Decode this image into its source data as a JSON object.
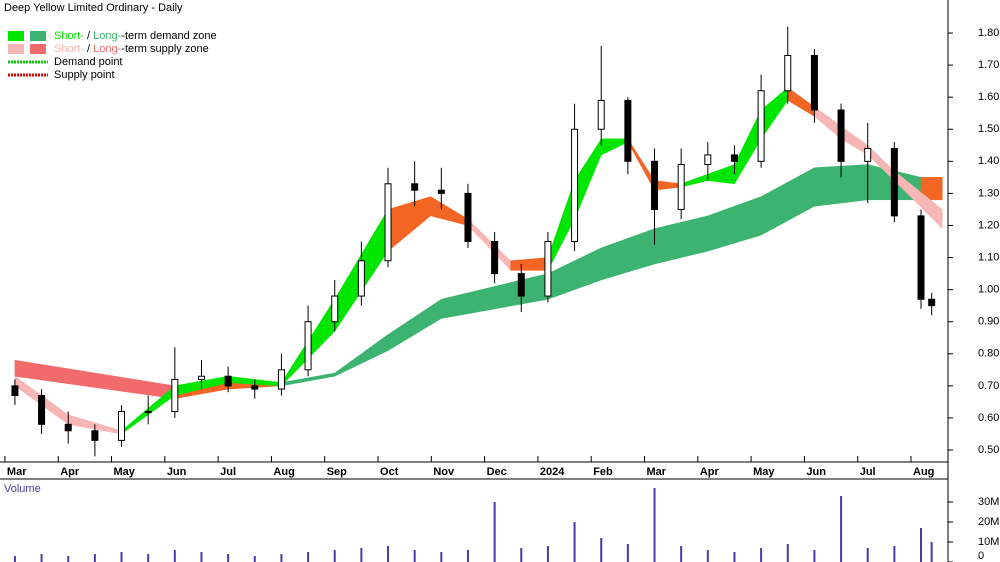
{
  "chart_data": [
    {
      "type": "candlestick",
      "title": "Deep Yellow Limited Ordinary - Daily",
      "legend": [
        {
          "parts": [
            "Short-",
            " / ",
            "Long-",
            "-term demand zone"
          ],
          "colors": [
            "#00e600",
            "#3cb371"
          ]
        },
        {
          "parts": [
            "Short-",
            " / ",
            "Long-",
            "-term supply zone"
          ],
          "colors": [
            "#f7b6b6",
            "#f26b6b"
          ]
        },
        {
          "parts": [
            "Demand point"
          ],
          "colors": [
            "#00cc00"
          ]
        },
        {
          "parts": [
            "Supply point"
          ],
          "colors": [
            "#e00000"
          ]
        }
      ],
      "x": [
        0,
        0.5,
        1,
        1.5,
        2,
        2.5,
        3,
        3.5,
        4,
        4.5,
        5,
        5.5,
        6,
        6.5,
        7,
        7.5,
        8,
        8.5,
        9,
        9.5,
        10,
        10.5,
        11,
        11.5,
        12,
        12.5,
        13,
        13.5,
        14,
        14.5,
        15,
        15.5,
        16,
        16.5,
        17,
        17.2
      ],
      "open": [
        0.7,
        0.67,
        0.58,
        0.56,
        0.53,
        0.62,
        0.62,
        0.72,
        0.73,
        0.7,
        0.69,
        0.75,
        0.9,
        0.98,
        1.09,
        1.33,
        1.31,
        1.3,
        1.15,
        1.05,
        0.98,
        1.15,
        1.5,
        1.59,
        1.4,
        1.25,
        1.39,
        1.42,
        1.4,
        1.62,
        1.73,
        1.56,
        1.4,
        1.44,
        1.23,
        0.97
      ],
      "high": [
        0.72,
        0.69,
        0.62,
        0.58,
        0.64,
        0.67,
        0.82,
        0.78,
        0.76,
        0.72,
        0.8,
        0.95,
        1.03,
        1.15,
        1.38,
        1.4,
        1.38,
        1.33,
        1.18,
        1.08,
        1.18,
        1.58,
        1.76,
        1.6,
        1.44,
        1.44,
        1.46,
        1.45,
        1.67,
        1.82,
        1.75,
        1.58,
        1.52,
        1.46,
        1.25,
        0.99
      ],
      "low": [
        0.64,
        0.55,
        0.52,
        0.48,
        0.51,
        0.58,
        0.6,
        0.69,
        0.68,
        0.66,
        0.67,
        0.73,
        0.87,
        0.95,
        1.07,
        1.26,
        1.25,
        1.13,
        1.02,
        0.93,
        0.96,
        1.12,
        1.45,
        1.36,
        1.14,
        1.22,
        1.34,
        1.36,
        1.38,
        1.58,
        1.52,
        1.35,
        1.27,
        1.21,
        0.94,
        0.92
      ],
      "close": [
        0.67,
        0.58,
        0.56,
        0.53,
        0.62,
        0.62,
        0.72,
        0.73,
        0.7,
        0.69,
        0.75,
        0.9,
        0.98,
        1.09,
        1.33,
        1.31,
        1.3,
        1.15,
        1.05,
        0.98,
        1.15,
        1.5,
        1.59,
        1.4,
        1.25,
        1.39,
        1.42,
        1.4,
        1.62,
        1.73,
        1.56,
        1.4,
        1.44,
        1.23,
        0.97,
        0.95
      ],
      "bands": [
        {
          "x": [
            0,
            3,
            4,
            5,
            6,
            7,
            8,
            9,
            10,
            11,
            12,
            13,
            14,
            15,
            16,
            17,
            17.4
          ],
          "upper": [
            0.78,
            0.7,
            0.72,
            0.71,
            0.74,
            0.86,
            0.97,
            1.01,
            1.05,
            1.13,
            1.19,
            1.23,
            1.29,
            1.38,
            1.39,
            1.35,
            1.35
          ],
          "lower": [
            0.73,
            0.66,
            0.69,
            0.7,
            0.73,
            0.81,
            0.91,
            0.94,
            0.97,
            1.03,
            1.08,
            1.12,
            1.17,
            1.26,
            1.28,
            1.28,
            1.28
          ],
          "colors": [
            "#f26b6b",
            "#f26522",
            "#f26522",
            "#3cb371",
            "#3cb371",
            "#3cb371",
            "#3cb371",
            "#3cb371",
            "#3cb371",
            "#3cb371",
            "#3cb371",
            "#3cb371",
            "#3cb371",
            "#3cb371",
            "#3cb371",
            "#f26522",
            "#f26522"
          ]
        },
        {
          "x": [
            0,
            1,
            2,
            3,
            4,
            5,
            6,
            7,
            7.8,
            8.5,
            9.3,
            10,
            10.5,
            11,
            11.5,
            12,
            12.5,
            13,
            13.5,
            14,
            14.5,
            15,
            15.5,
            16,
            16.5,
            17.4
          ],
          "upper": [
            0.73,
            0.61,
            0.56,
            0.7,
            0.73,
            0.71,
            0.97,
            1.25,
            1.29,
            1.22,
            1.09,
            1.1,
            1.34,
            1.47,
            1.47,
            1.34,
            1.33,
            1.36,
            1.39,
            1.56,
            1.63,
            1.57,
            1.51,
            1.45,
            1.37,
            1.25
          ],
          "lower": [
            0.7,
            0.58,
            0.55,
            0.67,
            0.71,
            0.7,
            0.87,
            1.12,
            1.23,
            1.2,
            1.06,
            1.06,
            1.22,
            1.42,
            1.46,
            1.31,
            1.32,
            1.34,
            1.33,
            1.47,
            1.59,
            1.54,
            1.47,
            1.42,
            1.34,
            1.19
          ],
          "colors": [
            "#f7b6b6",
            "#f7b6b6",
            "#00e600",
            "#00e600",
            "#00e600",
            "#00e600",
            "#00e600",
            "#f26522",
            "#f26522",
            "#f7b6b6",
            "#f26522",
            "#00e600",
            "#00e600",
            "#00e600",
            "#f26522",
            "#f26522",
            "#00e600",
            "#00e600",
            "#00e600",
            "#00e600",
            "#f26522",
            "#f7b6b6",
            "#f7b6b6",
            "#f7b6b6",
            "#f7b6b6",
            "#f7b6b6"
          ]
        }
      ],
      "xlim": [
        -0.28,
        17.45
      ],
      "ylim": [
        0.4626,
        1.903
      ],
      "xticks": [
        {
          "value": 0,
          "label": "Mar"
        },
        {
          "value": 1,
          "label": "Apr"
        },
        {
          "value": 2,
          "label": "May"
        },
        {
          "value": 3,
          "label": "Jun"
        },
        {
          "value": 4,
          "label": "Jul"
        },
        {
          "value": 5,
          "label": "Aug"
        },
        {
          "value": 6,
          "label": "Sep"
        },
        {
          "value": 7,
          "label": "Oct"
        },
        {
          "value": 8,
          "label": "Nov"
        },
        {
          "value": 9,
          "label": "Dec"
        },
        {
          "value": 10,
          "label": "2024"
        },
        {
          "value": 11,
          "label": "Feb"
        },
        {
          "value": 12,
          "label": "Mar"
        },
        {
          "value": 13,
          "label": "Apr"
        },
        {
          "value": 14,
          "label": "May"
        },
        {
          "value": 15,
          "label": "Jun"
        },
        {
          "value": 16,
          "label": "Jul"
        },
        {
          "value": 17,
          "label": "Aug"
        }
      ],
      "yticks": [
        {
          "value": 0.5,
          "label": "0.50"
        },
        {
          "value": 0.6,
          "label": "0.60"
        },
        {
          "value": 0.7,
          "label": "0.70"
        },
        {
          "value": 0.8,
          "label": "0.80"
        },
        {
          "value": 0.9,
          "label": "0.90"
        },
        {
          "value": 1.0,
          "label": "1.00"
        },
        {
          "value": 1.1,
          "label": "1.10"
        },
        {
          "value": 1.2,
          "label": "1.20"
        },
        {
          "value": 1.3,
          "label": "1.30"
        },
        {
          "value": 1.4,
          "label": "1.40"
        },
        {
          "value": 1.5,
          "label": "1.50"
        },
        {
          "value": 1.6,
          "label": "1.60"
        },
        {
          "value": 1.7,
          "label": "1.70"
        },
        {
          "value": 1.8,
          "label": "1.80"
        }
      ]
    },
    {
      "type": "bar",
      "title": "Volume",
      "color": "#4a3aa8",
      "x": [
        0,
        0.5,
        1,
        1.5,
        2,
        2.5,
        3,
        3.5,
        4,
        4.5,
        5,
        5.5,
        6,
        6.5,
        7,
        7.5,
        8,
        8.5,
        9,
        9.5,
        10,
        10.5,
        11,
        11.5,
        12,
        12.5,
        13,
        13.5,
        14,
        14.5,
        15,
        15.5,
        16,
        16.5,
        17,
        17.2
      ],
      "values": [
        3000000,
        4000000,
        3000000,
        4000000,
        5000000,
        4000000,
        6000000,
        5000000,
        4000000,
        3000000,
        4000000,
        5000000,
        6000000,
        7000000,
        8000000,
        6000000,
        5000000,
        6000000,
        30000000,
        7000000,
        8000000,
        20000000,
        12000000,
        9000000,
        37000000,
        8000000,
        6000000,
        5000000,
        7000000,
        9000000,
        6000000,
        33000000,
        7000000,
        8000000,
        17000000,
        10000000
      ],
      "xlim": [
        -0.28,
        17.45
      ],
      "ylim": [
        0,
        40000000
      ],
      "yticks": [
        {
          "value": 0,
          "label": "0"
        },
        {
          "value": 10000000,
          "label": "10M"
        },
        {
          "value": 20000000,
          "label": "20M"
        },
        {
          "value": 30000000,
          "label": "30M"
        }
      ]
    }
  ]
}
